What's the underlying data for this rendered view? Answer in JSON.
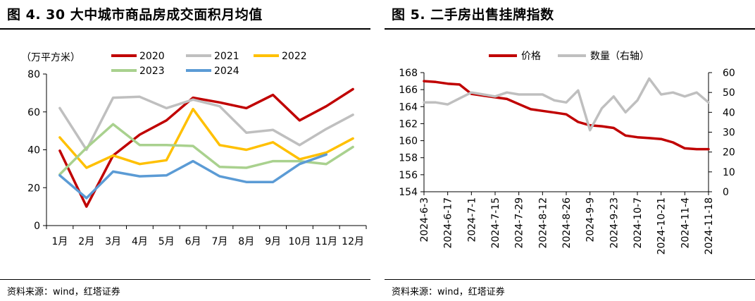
{
  "left": {
    "title": "图 4. 30 大中城市商品房成交面积月均值",
    "source": "资料来源：wind，红塔证券",
    "chart_data": {
      "type": "line",
      "unit_label": "（万平方米）",
      "categories": [
        "1月",
        "2月",
        "3月",
        "4月",
        "5月",
        "6月",
        "7月",
        "8月",
        "9月",
        "10月",
        "11月",
        "12月"
      ],
      "ylim": [
        0,
        80
      ],
      "yticks": [
        0,
        20,
        40,
        60,
        80
      ],
      "legend_position": "top",
      "series": [
        {
          "name": "2020",
          "color": "#c00000",
          "values": [
            39.5,
            10,
            37,
            48,
            55.5,
            67.5,
            65,
            62,
            69,
            55.5,
            63,
            72
          ]
        },
        {
          "name": "2021",
          "color": "#bfbfbf",
          "values": [
            62,
            40,
            67.5,
            68,
            62,
            66.5,
            63,
            49,
            50.5,
            42.5,
            51,
            58.5
          ]
        },
        {
          "name": "2022",
          "color": "#ffc000",
          "values": [
            46.5,
            30.5,
            37,
            32.5,
            34.5,
            61.5,
            42.5,
            40,
            44,
            35,
            38.5,
            46
          ]
        },
        {
          "name": "2023",
          "color": "#a9d18e",
          "values": [
            27,
            41,
            53.5,
            42.5,
            42.5,
            42,
            31,
            30.5,
            34,
            34,
            32.5,
            41.5
          ]
        },
        {
          "name": "2024",
          "color": "#5b9bd5",
          "values": [
            26.5,
            14.5,
            28.5,
            26,
            26.5,
            34,
            26,
            23,
            23,
            32.5,
            37.5,
            null
          ]
        }
      ]
    }
  },
  "right": {
    "title": "图 5. 二手房出售挂牌指数",
    "source": "资料来源：wind，红塔证券",
    "chart_data": {
      "type": "line",
      "categories": [
        "2024-6-3",
        "2024-6-17",
        "2024-7-1",
        "2024-7-15",
        "2024-7-29",
        "2024-8-12",
        "2024-8-26",
        "2024-9-9",
        "2024-9-23",
        "2024-10-7",
        "2024-10-21",
        "2024-11-4",
        "2024-11-18"
      ],
      "y_left": {
        "ylim": [
          154,
          168
        ],
        "ticks": [
          154,
          156,
          158,
          160,
          162,
          164,
          166,
          168
        ]
      },
      "y_right": {
        "ylim": [
          0,
          60
        ],
        "ticks": [
          0,
          10,
          20,
          30,
          40,
          50,
          60
        ]
      },
      "legend_position": "top",
      "series": [
        {
          "name": "价格",
          "axis": "left",
          "color": "#c00000",
          "x": [
            "2024-6-3",
            "2024-6-10",
            "2024-6-17",
            "2024-6-24",
            "2024-7-1",
            "2024-7-8",
            "2024-7-15",
            "2024-7-22",
            "2024-7-29",
            "2024-8-5",
            "2024-8-12",
            "2024-8-19",
            "2024-8-26",
            "2024-9-2",
            "2024-9-9",
            "2024-9-16",
            "2024-9-23",
            "2024-9-30",
            "2024-10-7",
            "2024-10-14",
            "2024-10-21",
            "2024-10-28",
            "2024-11-4",
            "2024-11-11",
            "2024-11-18"
          ],
          "values": [
            167,
            166.9,
            166.7,
            166.6,
            165.5,
            165.3,
            165.1,
            164.9,
            164.3,
            163.7,
            163.5,
            163.3,
            163.1,
            162.2,
            161.8,
            161.7,
            161.5,
            160.6,
            160.4,
            160.3,
            160.2,
            159.8,
            159.1,
            159.0,
            159.0
          ]
        },
        {
          "name": "数量（右轴）",
          "axis": "right",
          "color": "#bfbfbf",
          "x": [
            "2024-6-3",
            "2024-6-10",
            "2024-6-17",
            "2024-6-24",
            "2024-7-1",
            "2024-7-8",
            "2024-7-15",
            "2024-7-22",
            "2024-7-29",
            "2024-8-5",
            "2024-8-12",
            "2024-8-19",
            "2024-8-26",
            "2024-9-2",
            "2024-9-9",
            "2024-9-16",
            "2024-9-23",
            "2024-9-30",
            "2024-10-7",
            "2024-10-14",
            "2024-10-21",
            "2024-10-28",
            "2024-11-4",
            "2024-11-11",
            "2024-11-18"
          ],
          "values": [
            45,
            45,
            44,
            47,
            50,
            49,
            48,
            50,
            49,
            49,
            49,
            46,
            45,
            51,
            31,
            42,
            48,
            40,
            46,
            57,
            49,
            50,
            48,
            50,
            45
          ]
        }
      ]
    }
  }
}
